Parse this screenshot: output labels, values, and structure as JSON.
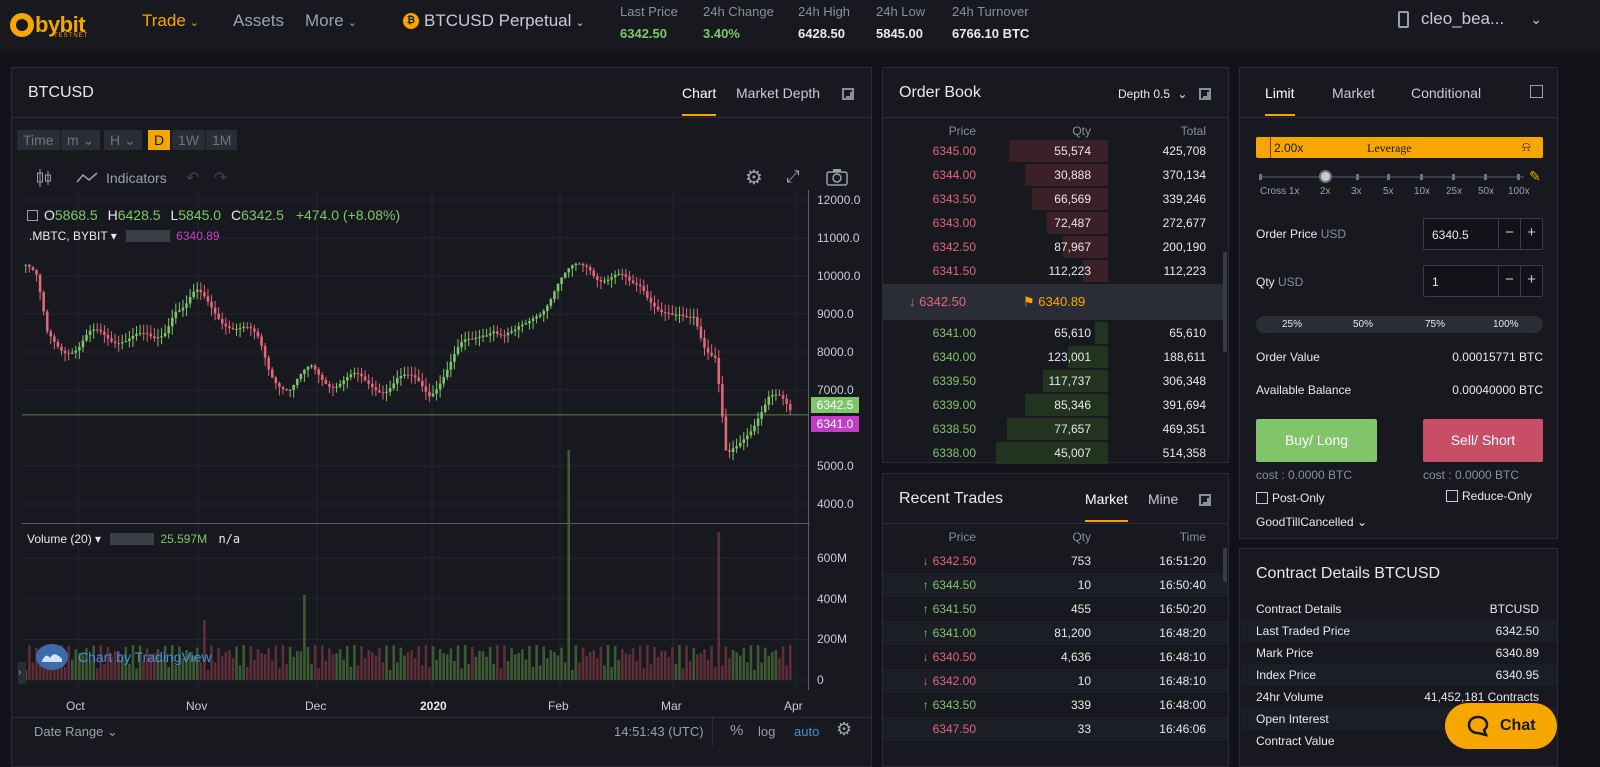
{
  "topbar": {
    "logo": "bybit",
    "logo_sub": "TESTNET",
    "nav": [
      "Trade",
      "Assets",
      "More"
    ],
    "symbol": "BTCUSD Perpetual",
    "coin_glyph": "₿",
    "stats": [
      {
        "label": "Last Price",
        "value": "6342.50"
      },
      {
        "label": "24h Change",
        "value": "3.40%"
      },
      {
        "label": "24h High",
        "value": "6428.50"
      },
      {
        "label": "24h Low",
        "value": "5845.00"
      },
      {
        "label": "24h Turnover",
        "value": "6766.10 BTC"
      }
    ],
    "user": "cleo_bea..."
  },
  "chart_panel": {
    "title": "BTCUSD",
    "tabs": [
      "Chart",
      "Market Depth"
    ],
    "timeframes": [
      "Time",
      "m",
      "H",
      "D",
      "1W",
      "1M"
    ],
    "indicators_label": "Indicators",
    "ohlc": {
      "o_label": "O",
      "o": "5868.5",
      "h_label": "H",
      "h": "6428.5",
      "l_label": "L",
      "l": "5845.0",
      "c_label": "C",
      "c": "6342.5",
      "chg": "+474.0 (+8.08%)"
    },
    "mbtc_label": ".MBTC, BYBIT",
    "mbtc_value": "6340.89",
    "price_tag_last": "6342.5",
    "price_tag_mark": "6341.0",
    "volume_label": "Volume (20)",
    "volume_value": "25.597M",
    "volume_na": "n/a",
    "watermark": "Chart by TradingView",
    "date_range": "Date Range",
    "clock": "14:51:43 (UTC)",
    "pct": "%",
    "log": "log",
    "auto": "auto",
    "colors": {
      "up": "#80c56a",
      "down": "#e0677b",
      "accent": "#f7a600"
    }
  },
  "chart_data": {
    "type": "candlestick",
    "x_ticks": [
      "Oct",
      "Nov",
      "Dec",
      "2020",
      "Feb",
      "Mar",
      "Apr"
    ],
    "y_ticks": [
      "12000.0",
      "11000.0",
      "10000.0",
      "9000.0",
      "8000.0",
      "7000.0",
      "5000.0",
      "4000.0"
    ],
    "ylim": [
      3500,
      12000
    ],
    "volume_ticks": [
      "600M",
      "400M",
      "200M",
      "0"
    ],
    "close_series": [
      10300,
      9800,
      8400,
      8300,
      8200,
      8100,
      8300,
      8400,
      8450,
      8500,
      8400,
      8250,
      8200,
      8600,
      9300,
      9200,
      9400,
      9250,
      9100,
      8900,
      8600,
      8400,
      8200,
      7600,
      7300,
      7000,
      7200,
      7500,
      7400,
      7300,
      7250,
      7200,
      7100,
      7150,
      7200,
      7300,
      7150,
      7100,
      7000,
      7400,
      7700,
      8000,
      8200,
      8600,
      8800,
      8400,
      8300,
      8600,
      9100,
      9400,
      9700,
      9900,
      10200,
      10400,
      10100,
      9900,
      9800,
      9700,
      9900,
      9500,
      9000,
      8700,
      8800,
      9100,
      8300,
      7800,
      5000,
      5400,
      6000,
      6500,
      6800,
      6600,
      6342.5
    ]
  },
  "order_book": {
    "title": "Order Book",
    "depth": "Depth 0.5",
    "headers": [
      "Price",
      "Qty",
      "Total"
    ],
    "asks": [
      [
        "6345.00",
        "55,574",
        "425,708"
      ],
      [
        "6344.00",
        "30,888",
        "370,134"
      ],
      [
        "6343.50",
        "66,569",
        "339,246"
      ],
      [
        "6343.00",
        "72,487",
        "272,677"
      ],
      [
        "6342.50",
        "87,967",
        "200,190"
      ],
      [
        "6341.50",
        "112,223",
        "112,223"
      ]
    ],
    "ask_depth_fraction": [
      0.44,
      0.37,
      0.34,
      0.27,
      0.2,
      0.11
    ],
    "last_price": "6342.50",
    "mark_price": "6340.89",
    "bids": [
      [
        "6341.00",
        "65,610",
        "65,610"
      ],
      [
        "6340.00",
        "123,001",
        "188,611"
      ],
      [
        "6339.50",
        "117,737",
        "306,348"
      ],
      [
        "6339.00",
        "85,346",
        "391,694"
      ],
      [
        "6338.50",
        "77,657",
        "469,351"
      ],
      [
        "6338.00",
        "45,007",
        "514,358"
      ]
    ],
    "bid_depth_fraction": [
      0.06,
      0.18,
      0.29,
      0.37,
      0.45,
      0.5
    ]
  },
  "recent_trades": {
    "title": "Recent Trades",
    "tabs": [
      "Market",
      "Mine"
    ],
    "headers": [
      "Price",
      "Qty",
      "Time"
    ],
    "rows": [
      [
        "down",
        "6342.50",
        "753",
        "16:51:20"
      ],
      [
        "up",
        "6344.50",
        "10",
        "16:50:40"
      ],
      [
        "up",
        "6341.50",
        "455",
        "16:50:20"
      ],
      [
        "up",
        "6341.00",
        "81,200",
        "16:48:20"
      ],
      [
        "down",
        "6340.50",
        "4,636",
        "16:48:10"
      ],
      [
        "down",
        "6342.00",
        "10",
        "16:48:10"
      ],
      [
        "up",
        "6343.50",
        "339",
        "16:48:00"
      ],
      [
        "",
        "6347.50",
        "33",
        "16:46:06"
      ]
    ]
  },
  "order_form": {
    "tabs": [
      "Limit",
      "Market",
      "Conditional"
    ],
    "leverage_value": "2.00x",
    "leverage_label": "Leverage",
    "leverage_marks": [
      "Cross 1x",
      "2x",
      "3x",
      "5x",
      "10x",
      "25x",
      "50x",
      "100x"
    ],
    "order_price_label": "Order Price",
    "order_price_unit": "USD",
    "order_price": "6340.5",
    "qty_label": "Qty",
    "qty_unit": "USD",
    "qty": "1",
    "minus": "−",
    "plus": "+",
    "percents": [
      "25%",
      "50%",
      "75%",
      "100%"
    ],
    "order_value_label": "Order Value",
    "order_value": "0.00015771 BTC",
    "balance_label": "Available Balance",
    "balance": "0.00040000 BTC",
    "buy_label": "Buy/ Long",
    "sell_label": "Sell/ Short",
    "buy_cost": "cost : 0.0000 BTC",
    "sell_cost": "cost : 0.0000 BTC",
    "post_only": "Post-Only",
    "reduce_only": "Reduce-Only",
    "tif": "GoodTillCancelled",
    "buy_color": "#80c56a",
    "sell_color": "#c84e67"
  },
  "contract_details": {
    "title": "Contract Details BTCUSD",
    "rows": [
      [
        "Contract Details",
        "BTCUSD"
      ],
      [
        "Last Traded Price",
        "6342.50"
      ],
      [
        "Mark Price",
        "6340.89"
      ],
      [
        "Index Price",
        "6340.95"
      ],
      [
        "24hr Volume",
        "41,452,181 Contracts"
      ],
      [
        "Open Interest",
        ""
      ],
      [
        "Contract Value",
        ""
      ]
    ]
  },
  "chat": {
    "label": "Chat"
  }
}
